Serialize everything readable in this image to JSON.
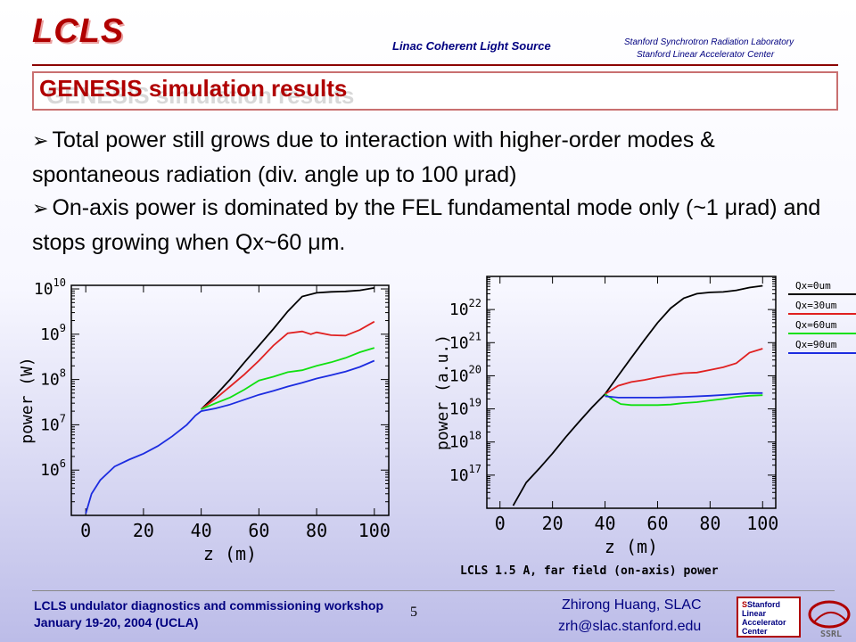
{
  "header": {
    "logo": "LCLS",
    "center": "Linac Coherent Light Source",
    "org_line1": "Stanford Synchrotron Radiation Laboratory",
    "org_line2": "Stanford Linear Accelerator Center",
    "title": "GENESIS simulation results"
  },
  "bullets": [
    "Total power still grows due to interaction with higher-order modes & spontaneous radiation (div. angle up to 100 μrad)",
    "On-axis power is dominated by the FEL fundamental mode only (~1 μrad) and stops growing when Qx~60 μm."
  ],
  "colors": {
    "black": "#000000",
    "red": "#e02020",
    "green": "#10e010",
    "blue": "#1c2ce0",
    "title": "#b00000",
    "navy": "#000080"
  },
  "chart_data": [
    {
      "type": "line",
      "title": "",
      "xlabel": "z (m)",
      "ylabel": "power (W)",
      "yscale": "log",
      "xlim": [
        -5,
        105
      ],
      "ylim": [
        100000.0,
        12000000000.0
      ],
      "xticks": [
        "0",
        "20",
        "40",
        "60",
        "80",
        "100"
      ],
      "yticks": [
        "10^6",
        "10^7",
        "10^8",
        "10^9",
        "10^10"
      ],
      "series": [
        {
          "name": "Qx=0um",
          "color": "black",
          "x": [
            40,
            45,
            50,
            55,
            60,
            65,
            70,
            75,
            80,
            85,
            90,
            95,
            100
          ],
          "y": [
            22000000.0,
            45000000.0,
            100000000.0,
            240000000.0,
            560000000.0,
            1300000000.0,
            3200000000.0,
            6800000000.0,
            8200000000.0,
            8600000000.0,
            8800000000.0,
            9300000000.0,
            10500000000.0
          ]
        },
        {
          "name": "Qx=30um",
          "color": "red",
          "x": [
            40,
            45,
            50,
            55,
            60,
            65,
            70,
            75,
            78,
            80,
            85,
            90,
            95,
            100
          ],
          "y": [
            22000000.0,
            38000000.0,
            70000000.0,
            130000000.0,
            260000000.0,
            560000000.0,
            1050000000.0,
            1150000000.0,
            1000000000.0,
            1100000000.0,
            950000000.0,
            930000000.0,
            1250000000.0,
            1900000000.0
          ]
        },
        {
          "name": "Qx=60um",
          "color": "green",
          "x": [
            40,
            45,
            50,
            55,
            60,
            65,
            70,
            75,
            80,
            85,
            90,
            95,
            100
          ],
          "y": [
            22000000.0,
            30000000.0,
            40000000.0,
            60000000.0,
            95000000.0,
            115000000.0,
            145000000.0,
            160000000.0,
            200000000.0,
            240000000.0,
            300000000.0,
            400000000.0,
            500000000.0
          ]
        },
        {
          "name": "Qx=90um",
          "color": "blue",
          "x": [
            0,
            2,
            5,
            10,
            15,
            20,
            25,
            30,
            35,
            38,
            40,
            45,
            50,
            55,
            60,
            65,
            70,
            75,
            80,
            85,
            90,
            95,
            100
          ],
          "y": [
            110000.0,
            300000.0,
            600000.0,
            1200000.0,
            1700000.0,
            2300000.0,
            3400000.0,
            5600000.0,
            10000000.0,
            16000000.0,
            20000000.0,
            23000000.0,
            28000000.0,
            36000000.0,
            46000000.0,
            56000000.0,
            70000000.0,
            85000000.0,
            105000000.0,
            125000000.0,
            150000000.0,
            190000000.0,
            260000000.0
          ]
        }
      ]
    },
    {
      "type": "line",
      "title": "LCLS 1.5 A, far field (on-axis) power",
      "xlabel": "z (m)",
      "ylabel": "power (a.u.)",
      "yscale": "log",
      "xlim": [
        -5,
        105
      ],
      "ylim": [
        1e+16,
        1e+23
      ],
      "xticks": [
        "0",
        "20",
        "40",
        "60",
        "80",
        "100"
      ],
      "yticks": [
        "10^17",
        "10^18",
        "10^19",
        "10^20",
        "10^21",
        "10^22"
      ],
      "series": [
        {
          "name": "Qx=0um",
          "color": "black",
          "x": [
            5,
            10,
            15,
            20,
            25,
            30,
            35,
            40,
            45,
            50,
            55,
            60,
            65,
            70,
            75,
            80,
            85,
            90,
            95,
            100
          ],
          "y": [
            1.2e+16,
            6e+16,
            1.6e+17,
            4.5e+17,
            1.4e+18,
            4e+18,
            1.1e+19,
            2.8e+19,
            1e+20,
            3.5e+20,
            1.2e+21,
            4e+21,
            1.1e+22,
            2.2e+22,
            3e+22,
            3.3e+22,
            3.4e+22,
            3.8e+22,
            4.6e+22,
            5.2e+22
          ]
        },
        {
          "name": "Qx=30um",
          "color": "red",
          "x": [
            40,
            45,
            50,
            55,
            60,
            65,
            70,
            75,
            80,
            85,
            90,
            95,
            100
          ],
          "y": [
            2.8e+19,
            5e+19,
            6.5e+19,
            7.5e+19,
            9e+19,
            1.05e+20,
            1.2e+20,
            1.25e+20,
            1.5e+20,
            1.8e+20,
            2.4e+20,
            5e+20,
            6.6e+20
          ]
        },
        {
          "name": "Qx=60um",
          "color": "green",
          "x": [
            40,
            43,
            46,
            50,
            55,
            60,
            65,
            70,
            75,
            80,
            85,
            90,
            95,
            100
          ],
          "y": [
            2.8e+19,
            1.9e+19,
            1.4e+19,
            1.3e+19,
            1.3e+19,
            1.3e+19,
            1.35e+19,
            1.5e+19,
            1.6e+19,
            1.8e+19,
            2e+19,
            2.3e+19,
            2.5e+19,
            2.6e+19
          ]
        },
        {
          "name": "Qx=90um",
          "color": "blue",
          "x": [
            40,
            45,
            50,
            60,
            70,
            80,
            90,
            95,
            100
          ],
          "y": [
            2.4e+19,
            2.2e+19,
            2.2e+19,
            2.2e+19,
            2.3e+19,
            2.5e+19,
            2.8e+19,
            3e+19,
            3e+19
          ]
        }
      ]
    }
  ],
  "footer": {
    "workshop": "LCLS undulator diagnostics and commissioning workshop",
    "date": "January 19-20, 2004 (UCLA)",
    "page": "5",
    "author": "Zhirong Huang, SLAC",
    "email": "zrh@slac.stanford.edu",
    "slac_logo": [
      "Stanford",
      "Linear",
      "Accelerator",
      "Center"
    ],
    "ssrl_logo": "SSRL"
  }
}
